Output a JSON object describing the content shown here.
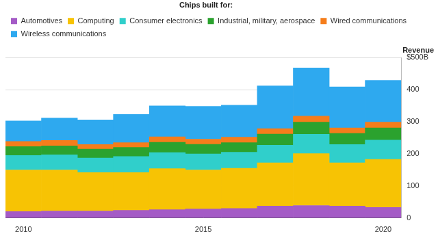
{
  "chart_data": {
    "type": "bar",
    "stacked": true,
    "grid": true,
    "legend": "top-left",
    "legend_title": "Chips built for:",
    "y_label": "Revenue",
    "categories": [
      "2010",
      null,
      null,
      null,
      null,
      "2015",
      null,
      null,
      null,
      null,
      "2020"
    ],
    "ylim": [
      0,
      500
    ],
    "yticks": [
      0,
      100,
      200,
      300,
      400,
      {
        "value": 500,
        "label": "$500B"
      }
    ],
    "series": [
      {
        "name": "Automotives",
        "color": "#a45bc6",
        "values": [
          20,
          22,
          22,
          24,
          26,
          28,
          30,
          37,
          39,
          37,
          33
        ]
      },
      {
        "name": "Computing",
        "color": "#f7c304",
        "values": [
          130,
          128,
          120,
          118,
          128,
          122,
          125,
          135,
          162,
          135,
          150
        ]
      },
      {
        "name": "Consumer electronics",
        "color": "#30cfcb",
        "values": [
          45,
          47,
          45,
          50,
          50,
          50,
          50,
          55,
          60,
          57,
          60
        ]
      },
      {
        "name": "Industrial, military, aerospace",
        "color": "#2ba22e",
        "values": [
          28,
          28,
          28,
          28,
          32,
          30,
          30,
          35,
          38,
          35,
          38
        ]
      },
      {
        "name": "Wired communications",
        "color": "#f57d1b",
        "values": [
          16,
          17,
          14,
          15,
          17,
          16,
          17,
          17,
          19,
          17,
          18
        ]
      },
      {
        "name": "Wireless communications",
        "color": "#2ea9ef",
        "values": [
          64,
          70,
          77,
          88,
          97,
          102,
          100,
          133,
          150,
          128,
          130
        ]
      }
    ]
  }
}
